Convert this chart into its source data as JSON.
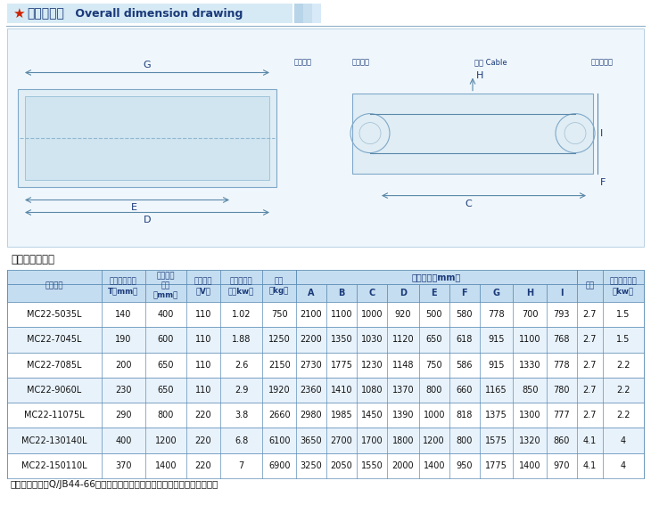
{
  "title_cn": "外形尺寸图",
  "title_en": " Overall dimension drawing",
  "star_color": "#cc2200",
  "title_color": "#1a3a7a",
  "title_bg": "#d6eaf5",
  "main_params_label": "主要技术参数：",
  "note_text": "注：卸扣采用涛Q/JB44-66标准系具卸扣，技术参数详见《机械设计手册》。",
  "bg_color": "#ffffff",
  "header_bg": "#c5ddf0",
  "row_bg_odd": "#ffffff",
  "row_bg_even": "#e8f2fb",
  "border_color": "#6090b8",
  "header_text_color": "#1a3a7a",
  "table_text_color": "#111111",
  "col_headers_line1": [
    "产品型号",
    "标准架设高",
    "输送皮带",
    "额定电压",
    "冷态消耗功",
    "自重",
    "A",
    "B",
    "C",
    "D",
    "E",
    "F",
    "G",
    "H",
    "I",
    "卸扣",
    "驱动电机容量"
  ],
  "col_headers_line2": [
    "",
    "度",
    "宽度",
    "",
    "率（kw）",
    "",
    "",
    "",
    "",
    "",
    "",
    "",
    "",
    "",
    "",
    "",
    ""
  ],
  "col_headers_line3": [
    "",
    "T（mm）",
    "（mm）",
    "（V）",
    "",
    "（kg）",
    "",
    "",
    "",
    "",
    "",
    "",
    "",
    "",
    "",
    "",
    "（kw）"
  ],
  "outer_dim_label": "外形尺寸（mm）",
  "rows": [
    [
      "MC22-5035L",
      "140",
      "400",
      "110",
      "1.02",
      "750",
      "2100",
      "1100",
      "1000",
      "920",
      "500",
      "580",
      "778",
      "700",
      "793",
      "2.7",
      "1.5"
    ],
    [
      "MC22-7045L",
      "190",
      "600",
      "110",
      "1.88",
      "1250",
      "2200",
      "1350",
      "1030",
      "1120",
      "650",
      "618",
      "915",
      "1100",
      "768",
      "2.7",
      "1.5"
    ],
    [
      "MC22-7085L",
      "200",
      "650",
      "110",
      "2.6",
      "2150",
      "2730",
      "1775",
      "1230",
      "1148",
      "750",
      "586",
      "915",
      "1330",
      "778",
      "2.7",
      "2.2"
    ],
    [
      "MC22-9060L",
      "230",
      "650",
      "110",
      "2.9",
      "1920",
      "2360",
      "1410",
      "1080",
      "1370",
      "800",
      "660",
      "1165",
      "850",
      "780",
      "2.7",
      "2.2"
    ],
    [
      "MC22-11075L",
      "290",
      "800",
      "220",
      "3.8",
      "2660",
      "2980",
      "1985",
      "1450",
      "1390",
      "1000",
      "818",
      "1375",
      "1300",
      "777",
      "2.7",
      "2.2"
    ],
    [
      "MC22-130140L",
      "400",
      "1200",
      "220",
      "6.8",
      "6100",
      "3650",
      "2700",
      "1700",
      "1800",
      "1200",
      "800",
      "1575",
      "1320",
      "860",
      "4.1",
      "4"
    ],
    [
      "MC22-150110L",
      "370",
      "1400",
      "220",
      "7",
      "6900",
      "3250",
      "2050",
      "1550",
      "2000",
      "1400",
      "950",
      "1775",
      "1400",
      "970",
      "4.1",
      "4"
    ]
  ],
  "diagram_bg": "#f0f7fc",
  "diagram_border": "#a0c0d8"
}
